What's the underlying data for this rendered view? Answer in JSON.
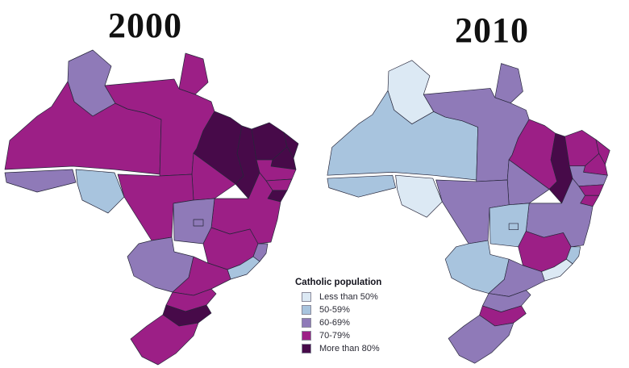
{
  "legend": {
    "title": "Catholic population",
    "items": [
      {
        "key": "lt50",
        "label": "Less than 50%",
        "color": "#dce9f4"
      },
      {
        "key": "50_59",
        "label": "50-59%",
        "color": "#a8c4de"
      },
      {
        "key": "60_69",
        "label": "60-69%",
        "color": "#8f7ab8"
      },
      {
        "key": "70_79",
        "label": "70-79%",
        "color": "#9c1f86"
      },
      {
        "key": "gt80",
        "label": "More than 80%",
        "color": "#470a49"
      }
    ]
  },
  "chart_data": {
    "type": "heatmap",
    "subtype": "choropleth",
    "region": "Brazil states",
    "title": "Catholic population",
    "legend_position": "bottom-center",
    "categories": [
      "Less than 50%",
      "50-59%",
      "60-69%",
      "70-79%",
      "More than 80%"
    ],
    "category_keys": [
      "lt50",
      "50_59",
      "60_69",
      "70_79",
      "gt80"
    ],
    "states": [
      "RR",
      "AP",
      "AM",
      "PA",
      "AC",
      "RO",
      "MA",
      "PI",
      "CE",
      "RN",
      "PB",
      "PE",
      "AL",
      "SE",
      "BA",
      "TO",
      "MT",
      "GO",
      "DF",
      "MS",
      "MG",
      "ES",
      "RJ",
      "SP",
      "PR",
      "SC",
      "RS"
    ],
    "series": [
      {
        "name": "2000",
        "values": [
          "60_69",
          "70_79",
          "70_79",
          "70_79",
          "60_69",
          "50_59",
          "gt80",
          "gt80",
          "gt80",
          "gt80",
          "gt80",
          "70_79",
          "70_79",
          "gt80",
          "70_79",
          "70_79",
          "70_79",
          "60_69",
          "60_69",
          "60_69",
          "70_79",
          "60_69",
          "50_59",
          "70_79",
          "70_79",
          "gt80",
          "70_79"
        ]
      },
      {
        "name": "2010",
        "values": [
          "lt50",
          "60_69",
          "50_59",
          "60_69",
          "50_59",
          "lt50",
          "70_79",
          "gt80",
          "70_79",
          "70_79",
          "70_79",
          "60_69",
          "70_79",
          "70_79",
          "60_69",
          "60_69",
          "60_69",
          "50_59",
          "50_59",
          "50_59",
          "70_79",
          "50_59",
          "lt50",
          "60_69",
          "60_69",
          "70_79",
          "60_69"
        ]
      }
    ]
  }
}
